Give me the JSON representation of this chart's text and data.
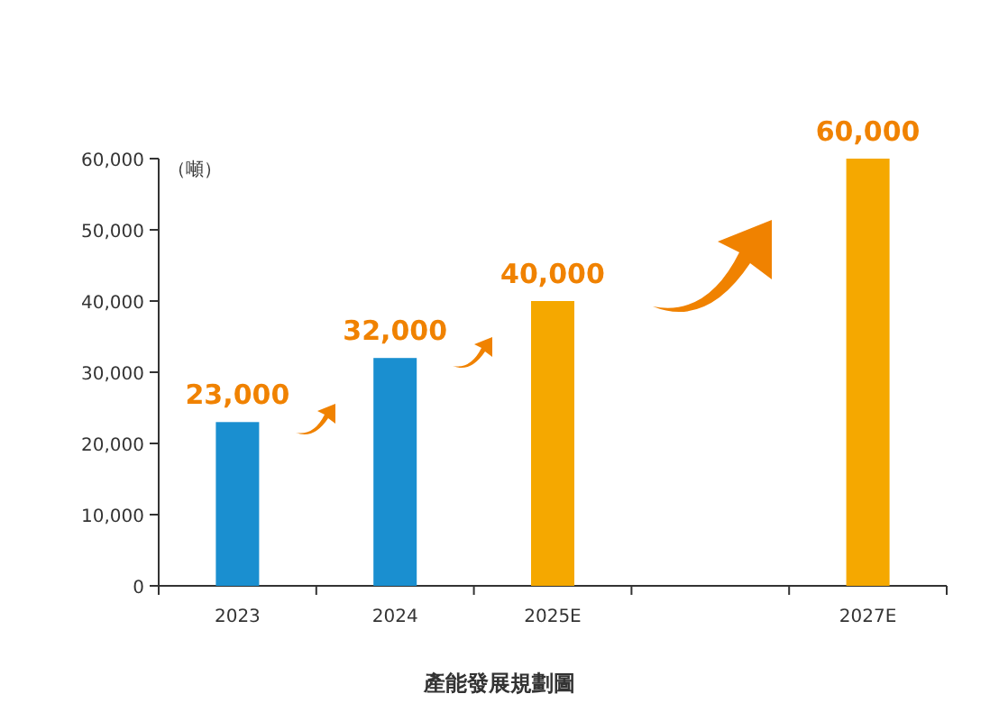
{
  "chart_data": {
    "type": "bar",
    "title": "產能發展規劃圖",
    "ylabel": "（噸）",
    "categories": [
      "2023",
      "2024",
      "2025E",
      null,
      "2027E"
    ],
    "values": [
      23000,
      32000,
      40000,
      null,
      60000
    ],
    "colors": [
      "#1a8fd0",
      "#1a8fd0",
      "#f5a800",
      null,
      "#f5a800"
    ],
    "value_labels": [
      "23,000",
      "32,000",
      "40,000",
      null,
      "60,000"
    ],
    "ylim": [
      0,
      60000
    ],
    "yticks": [
      {
        "value": 0,
        "label": "0"
      },
      {
        "value": 10000,
        "label": "10,000"
      },
      {
        "value": 20000,
        "label": "20,000"
      },
      {
        "value": 30000,
        "label": "30,000"
      },
      {
        "value": 40000,
        "label": "40,000"
      },
      {
        "value": 50000,
        "label": "50,000"
      },
      {
        "value": 60000,
        "label": "60,000"
      }
    ]
  }
}
